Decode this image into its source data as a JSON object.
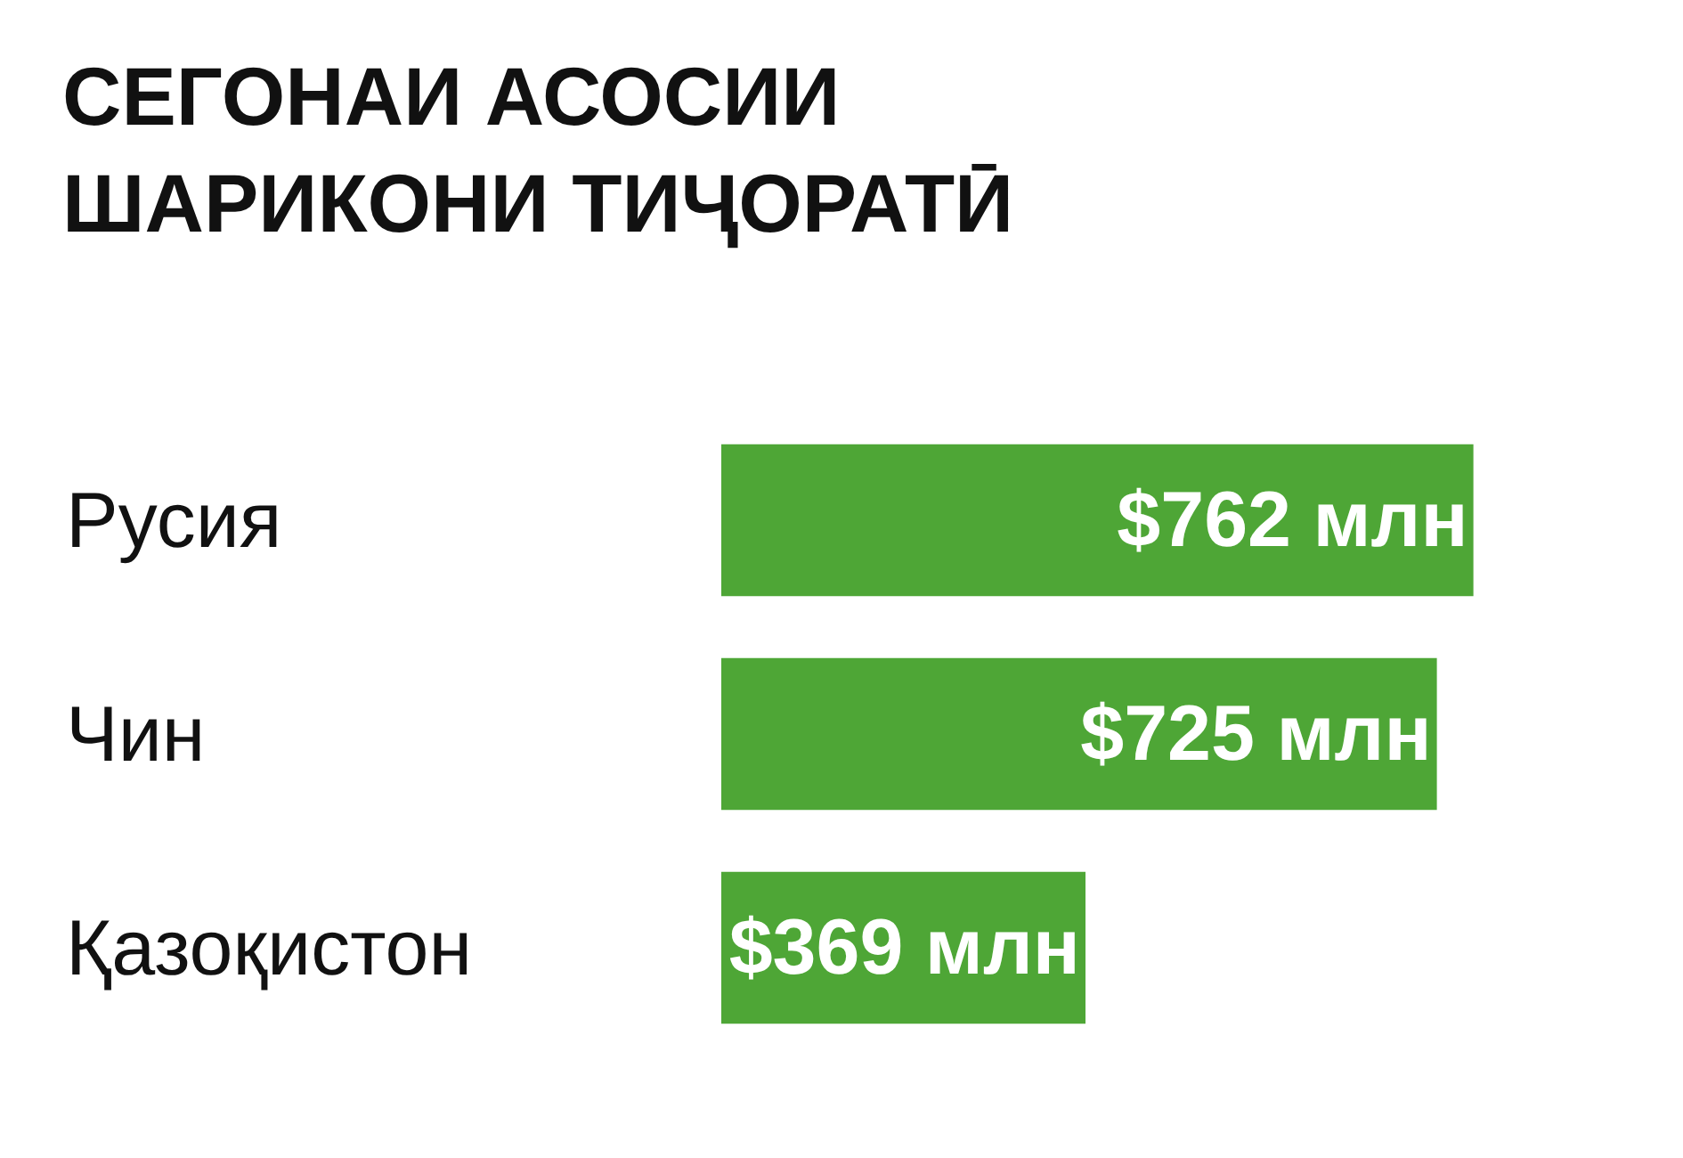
{
  "chart_data": {
    "type": "bar",
    "orientation": "horizontal",
    "title": "СЕГОНАИ АСОСИИ\nШАРИКОНИ ТИҶОРАТӢ",
    "categories": [
      "Русия",
      "Чин",
      "Қазоқистон"
    ],
    "values": [
      762,
      725,
      369
    ],
    "value_labels": [
      "$762 млн",
      "$725 млн",
      "$369 млн"
    ],
    "color": "#4ea636"
  }
}
